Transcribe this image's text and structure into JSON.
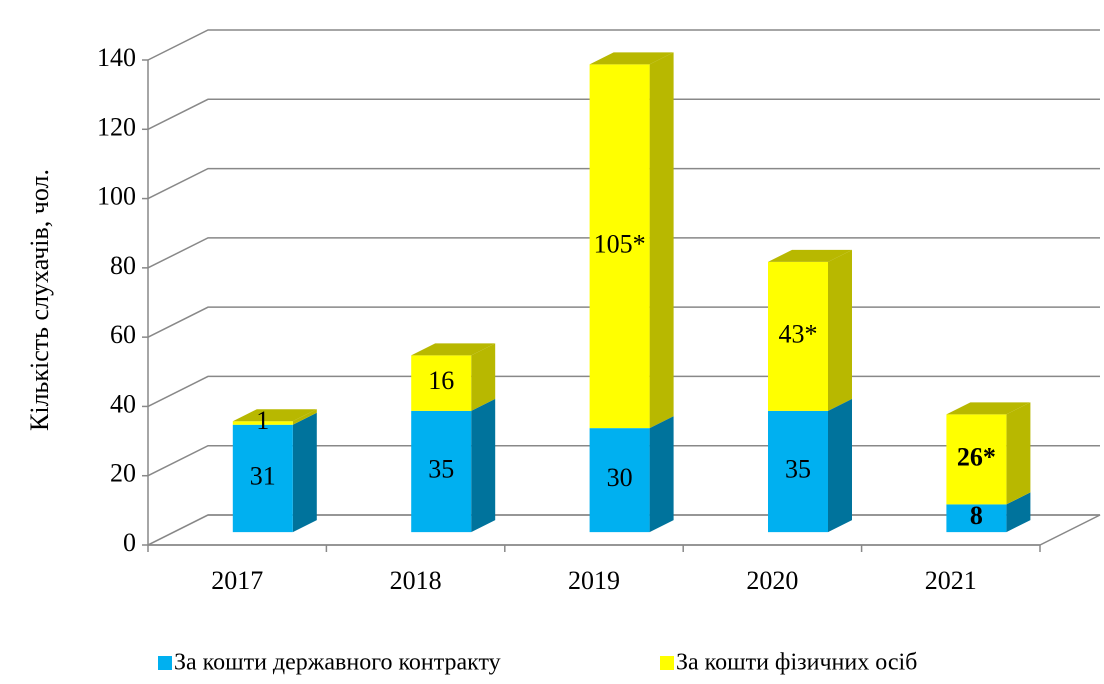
{
  "chart_data": {
    "type": "bar3d_stacked",
    "y_label": "Кількість слухачів, чол.",
    "categories": [
      "2017",
      "2018",
      "2019",
      "2020",
      "2021"
    ],
    "series": [
      {
        "name": "За кошти державного контракту",
        "color": "#00b0f0",
        "side_color": "#00739c",
        "values": [
          31,
          35,
          30,
          35,
          8
        ]
      },
      {
        "name": "За кошти фізичних осіб",
        "color": "#ffff00",
        "side_color": "#b8b800",
        "values": [
          1,
          16,
          105,
          43,
          26
        ],
        "value_labels": [
          "1",
          "16",
          "105*",
          "43*",
          "26*"
        ]
      }
    ],
    "ylim": [
      0,
      140
    ],
    "yticks": [
      0,
      20,
      40,
      60,
      80,
      100,
      120,
      140
    ],
    "grid": true
  }
}
